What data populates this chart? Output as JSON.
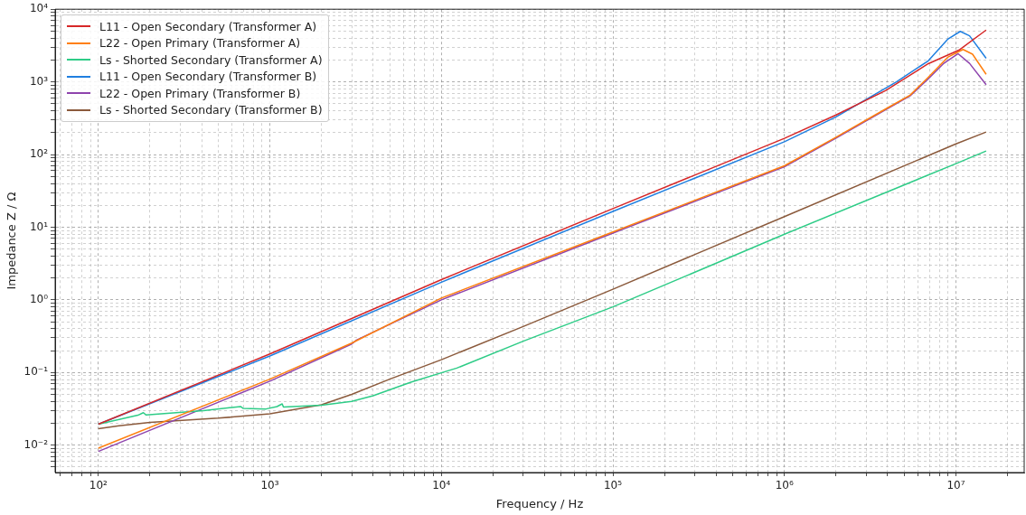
{
  "chart_data": {
    "type": "line",
    "xlabel": "Frequency / Hz",
    "ylabel": "Impedance Z / Ω",
    "log": "xy",
    "grid": true,
    "legend": "top left",
    "marker": "none",
    "line_style": "solid",
    "xlim": [
      56,
      25000000
    ],
    "ylim": [
      0.0042,
      10000
    ],
    "xticks": [
      {
        "value": 60,
        "label": null
      },
      {
        "value": 70,
        "label": null
      },
      {
        "value": 80,
        "label": null
      },
      {
        "value": 90,
        "label": null
      },
      {
        "value": 100,
        "label": "10²"
      },
      {
        "value": 200,
        "label": null
      },
      {
        "value": 300,
        "label": null
      },
      {
        "value": 400,
        "label": null
      },
      {
        "value": 500,
        "label": null
      },
      {
        "value": 600,
        "label": null
      },
      {
        "value": 700,
        "label": null
      },
      {
        "value": 800,
        "label": null
      },
      {
        "value": 900,
        "label": null
      },
      {
        "value": 1000,
        "label": "10³"
      },
      {
        "value": 2000,
        "label": null
      },
      {
        "value": 3000,
        "label": null
      },
      {
        "value": 4000,
        "label": null
      },
      {
        "value": 5000,
        "label": null
      },
      {
        "value": 6000,
        "label": null
      },
      {
        "value": 7000,
        "label": null
      },
      {
        "value": 8000,
        "label": null
      },
      {
        "value": 9000,
        "label": null
      },
      {
        "value": 10000,
        "label": "10⁴"
      },
      {
        "value": 20000,
        "label": null
      },
      {
        "value": 30000,
        "label": null
      },
      {
        "value": 40000,
        "label": null
      },
      {
        "value": 50000,
        "label": null
      },
      {
        "value": 60000,
        "label": null
      },
      {
        "value": 70000,
        "label": null
      },
      {
        "value": 80000,
        "label": null
      },
      {
        "value": 90000,
        "label": null
      },
      {
        "value": 100000,
        "label": "10⁵"
      },
      {
        "value": 200000,
        "label": null
      },
      {
        "value": 300000,
        "label": null
      },
      {
        "value": 400000,
        "label": null
      },
      {
        "value": 500000,
        "label": null
      },
      {
        "value": 600000,
        "label": null
      },
      {
        "value": 700000,
        "label": null
      },
      {
        "value": 800000,
        "label": null
      },
      {
        "value": 900000,
        "label": null
      },
      {
        "value": 1000000,
        "label": "10⁶"
      },
      {
        "value": 2000000,
        "label": null
      },
      {
        "value": 3000000,
        "label": null
      },
      {
        "value": 4000000,
        "label": null
      },
      {
        "value": 5000000,
        "label": null
      },
      {
        "value": 6000000,
        "label": null
      },
      {
        "value": 7000000,
        "label": null
      },
      {
        "value": 8000000,
        "label": null
      },
      {
        "value": 9000000,
        "label": null
      },
      {
        "value": 10000000,
        "label": "10⁷"
      },
      {
        "value": 20000000,
        "label": null
      }
    ],
    "yticks": [
      {
        "value": 0.005,
        "label": null
      },
      {
        "value": 0.006,
        "label": null
      },
      {
        "value": 0.007,
        "label": null
      },
      {
        "value": 0.008,
        "label": null
      },
      {
        "value": 0.009,
        "label": null
      },
      {
        "value": 0.01,
        "label": "10⁻²"
      },
      {
        "value": 0.02,
        "label": null
      },
      {
        "value": 0.03,
        "label": null
      },
      {
        "value": 0.04,
        "label": null
      },
      {
        "value": 0.05,
        "label": null
      },
      {
        "value": 0.06,
        "label": null
      },
      {
        "value": 0.07,
        "label": null
      },
      {
        "value": 0.08,
        "label": null
      },
      {
        "value": 0.09,
        "label": null
      },
      {
        "value": 0.1,
        "label": "10⁻¹"
      },
      {
        "value": 0.2,
        "label": null
      },
      {
        "value": 0.3,
        "label": null
      },
      {
        "value": 0.4,
        "label": null
      },
      {
        "value": 0.5,
        "label": null
      },
      {
        "value": 0.6,
        "label": null
      },
      {
        "value": 0.7,
        "label": null
      },
      {
        "value": 0.8,
        "label": null
      },
      {
        "value": 0.9,
        "label": null
      },
      {
        "value": 1,
        "label": "10⁰"
      },
      {
        "value": 2,
        "label": null
      },
      {
        "value": 3,
        "label": null
      },
      {
        "value": 4,
        "label": null
      },
      {
        "value": 5,
        "label": null
      },
      {
        "value": 6,
        "label": null
      },
      {
        "value": 7,
        "label": null
      },
      {
        "value": 8,
        "label": null
      },
      {
        "value": 9,
        "label": null
      },
      {
        "value": 10,
        "label": "10¹"
      },
      {
        "value": 20,
        "label": null
      },
      {
        "value": 30,
        "label": null
      },
      {
        "value": 40,
        "label": null
      },
      {
        "value": 50,
        "label": null
      },
      {
        "value": 60,
        "label": null
      },
      {
        "value": 70,
        "label": null
      },
      {
        "value": 80,
        "label": null
      },
      {
        "value": 90,
        "label": null
      },
      {
        "value": 100,
        "label": "10²"
      },
      {
        "value": 200,
        "label": null
      },
      {
        "value": 300,
        "label": null
      },
      {
        "value": 400,
        "label": null
      },
      {
        "value": 500,
        "label": null
      },
      {
        "value": 600,
        "label": null
      },
      {
        "value": 700,
        "label": null
      },
      {
        "value": 800,
        "label": null
      },
      {
        "value": 900,
        "label": null
      },
      {
        "value": 1000,
        "label": "10³"
      },
      {
        "value": 2000,
        "label": null
      },
      {
        "value": 3000,
        "label": null
      },
      {
        "value": 4000,
        "label": null
      },
      {
        "value": 5000,
        "label": null
      },
      {
        "value": 6000,
        "label": null
      },
      {
        "value": 7000,
        "label": null
      },
      {
        "value": 8000,
        "label": null
      },
      {
        "value": 9000,
        "label": null
      },
      {
        "value": 10000,
        "label": "10⁴"
      }
    ],
    "series": [
      {
        "name": "L11 - Open Secondary (Transformer A)",
        "color": "#d62728",
        "x": [
          100,
          1000,
          10000,
          100000,
          1000000,
          2000000,
          3900000,
          6900000,
          10400000,
          15000000
        ],
        "values": [
          0.0194,
          0.18,
          1.9,
          18,
          167,
          350,
          760,
          1780,
          2730,
          5170
        ]
      },
      {
        "name": "L22 - Open Primary (Transformer A)",
        "color": "#ff7f0e",
        "x": [
          100,
          1000,
          3000,
          10000,
          100000,
          1000000,
          2000000,
          3900000,
          5400000,
          6900000,
          9000000,
          11000000,
          12500000,
          15000000
        ],
        "values": [
          0.0091,
          0.081,
          0.254,
          1.06,
          8.6,
          70,
          173,
          425,
          655,
          1160,
          2200,
          2790,
          2400,
          1270
        ]
      },
      {
        "name": "Ls - Shorted Secondary (Transformer A)",
        "color": "#2ecc87",
        "x": [
          100,
          170,
          183,
          190,
          410,
          675,
          700,
          950,
          1100,
          1180,
          1200,
          2000,
          3000,
          4000,
          6700,
          12300,
          30000,
          100000,
          1000000,
          10000000,
          15000000
        ],
        "values": [
          0.0194,
          0.0258,
          0.028,
          0.026,
          0.0298,
          0.034,
          0.032,
          0.0315,
          0.034,
          0.037,
          0.0335,
          0.0355,
          0.04,
          0.048,
          0.074,
          0.115,
          0.27,
          0.8,
          8,
          75,
          112
        ]
      },
      {
        "name": "L11 - Open Secondary (Transformer B)",
        "color": "#1f7fe0",
        "x": [
          100,
          1000,
          10000,
          100000,
          1000000,
          2000000,
          4500000,
          6900000,
          9000000,
          10600000,
          12000000,
          15000000
        ],
        "values": [
          0.0194,
          0.169,
          1.75,
          16.5,
          150,
          330,
          1000,
          1950,
          3900,
          4950,
          4300,
          2110
        ]
      },
      {
        "name": "L22 - Open Primary (Transformer B)",
        "color": "#8e44ad",
        "x": [
          100,
          1000,
          3000,
          3200,
          10000,
          100000,
          1000000,
          2000000,
          3900000,
          5400000,
          6900000,
          8500000,
          10300000,
          12000000,
          15000000
        ],
        "values": [
          0.0082,
          0.076,
          0.247,
          0.28,
          1.0,
          8.3,
          68,
          168,
          415,
          640,
          1100,
          1800,
          2440,
          1800,
          915
        ]
      },
      {
        "name": "Ls - Shorted Secondary (Transformer B)",
        "color": "#8b5a3c",
        "x": [
          100,
          132,
          200,
          500,
          1000,
          2000,
          3000,
          5000,
          10000,
          30000,
          100000,
          1000000,
          10000000,
          15000000
        ],
        "values": [
          0.0168,
          0.0185,
          0.0206,
          0.0235,
          0.027,
          0.036,
          0.05,
          0.081,
          0.15,
          0.43,
          1.4,
          14,
          140,
          204
        ]
      }
    ]
  }
}
